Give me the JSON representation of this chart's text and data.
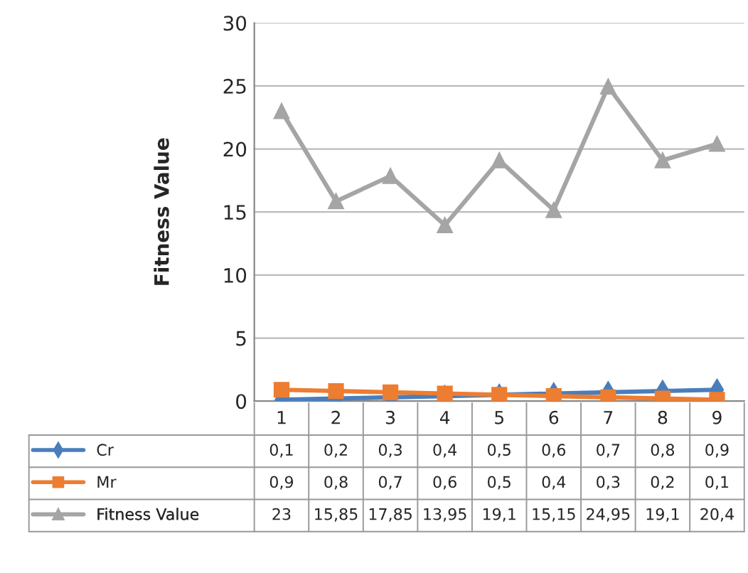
{
  "chart_data": {
    "type": "line",
    "ylabel": "Fitness Value",
    "categories": [
      "1",
      "2",
      "3",
      "4",
      "5",
      "6",
      "7",
      "8",
      "9"
    ],
    "series": [
      {
        "name": "Cr",
        "color": "#4a7ebb",
        "marker": "diamond",
        "values": [
          0.1,
          0.2,
          0.3,
          0.4,
          0.5,
          0.6,
          0.7,
          0.8,
          0.9
        ],
        "value_labels": [
          "0,1",
          "0,2",
          "0,3",
          "0,4",
          "0,5",
          "0,6",
          "0,7",
          "0,8",
          "0,9"
        ]
      },
      {
        "name": "Mr",
        "color": "#ed7d31",
        "marker": "square",
        "values": [
          0.9,
          0.8,
          0.7,
          0.6,
          0.5,
          0.4,
          0.3,
          0.2,
          0.1
        ],
        "value_labels": [
          "0,9",
          "0,8",
          "0,7",
          "0,6",
          "0,5",
          "0,4",
          "0,3",
          "0,2",
          "0,1"
        ]
      },
      {
        "name": "Fitness Value",
        "color": "#a5a5a5",
        "marker": "triangle",
        "values": [
          23,
          15.85,
          17.85,
          13.95,
          19.1,
          15.15,
          24.95,
          19.1,
          20.4
        ],
        "value_labels": [
          "23",
          "15,85",
          "17,85",
          "13,95",
          "19,1",
          "15,15",
          "24,95",
          "19,1",
          "20,4"
        ]
      }
    ],
    "ylim": [
      0,
      30
    ],
    "yticks": [
      0,
      5,
      10,
      15,
      20,
      25,
      30
    ],
    "grid": "y",
    "legend": "bottom"
  }
}
